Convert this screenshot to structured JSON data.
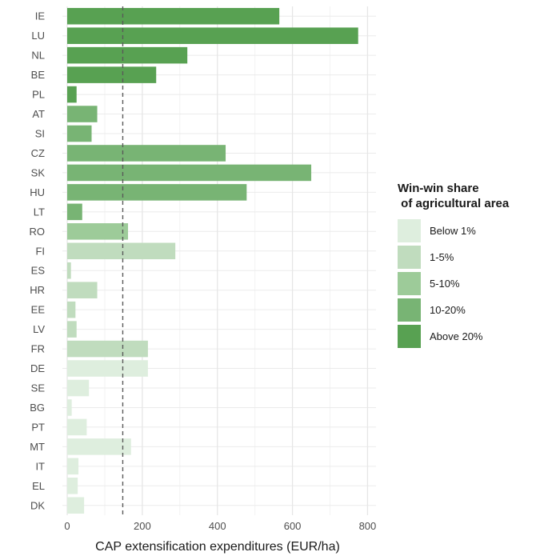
{
  "chart_data": {
    "type": "bar",
    "orientation": "horizontal",
    "categories": [
      "IE",
      "LU",
      "NL",
      "BE",
      "PL",
      "AT",
      "SI",
      "CZ",
      "SK",
      "HU",
      "LT",
      "RO",
      "FI",
      "ES",
      "HR",
      "EE",
      "LV",
      "FR",
      "DE",
      "SE",
      "BG",
      "PT",
      "MT",
      "IT",
      "EL",
      "DK"
    ],
    "values": [
      565,
      775,
      320,
      237,
      25,
      80,
      65,
      422,
      650,
      478,
      40,
      162,
      288,
      10,
      80,
      22,
      25,
      215,
      215,
      58,
      12,
      52,
      170,
      30,
      28,
      45
    ],
    "share_class": [
      4,
      4,
      4,
      4,
      4,
      3,
      3,
      3,
      3,
      3,
      3,
      2,
      1,
      1,
      1,
      1,
      1,
      1,
      0,
      0,
      0,
      0,
      0,
      0,
      0,
      0
    ],
    "xlabel": "CAP extensification expenditures (EUR/ha)",
    "ylabel": "",
    "xlim": [
      0,
      810
    ],
    "xticks": [
      0,
      200,
      400,
      600,
      800
    ],
    "reference_line": 148,
    "grid": true,
    "legend": {
      "title_line1": "Win-win share",
      "title_line2": " of agricultural area",
      "placement": "right",
      "entries": [
        {
          "label": "Below 1%",
          "color": "#deeede"
        },
        {
          "label": "1-5%",
          "color": "#c0dcbe"
        },
        {
          "label": "5-10%",
          "color": "#9dcb99"
        },
        {
          "label": "10-20%",
          "color": "#78b474"
        },
        {
          "label": "Above 20%",
          "color": "#58a152"
        }
      ]
    }
  }
}
